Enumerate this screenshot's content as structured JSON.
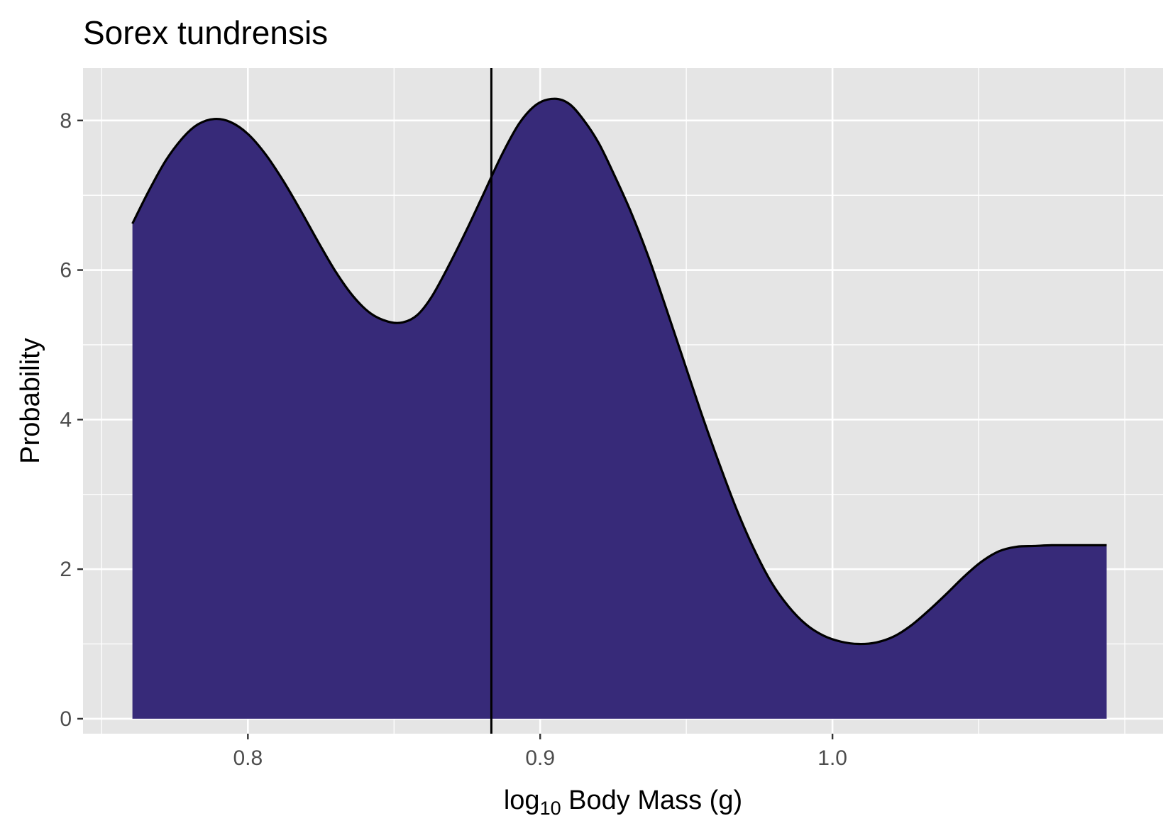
{
  "chart_data": {
    "type": "area",
    "title": "Sorex tundrensis",
    "xlabel": {
      "prefix": "log",
      "subscript": "10",
      "suffix": " Body Mass (g)"
    },
    "ylabel": "Probability",
    "xlim": [
      0.7436,
      1.1131
    ],
    "ylim": [
      -0.2,
      8.7
    ],
    "x_ticks": [
      {
        "value": 0.8,
        "label": "0.8"
      },
      {
        "value": 0.9,
        "label": "0.9"
      },
      {
        "value": 1.0,
        "label": "1.0"
      }
    ],
    "x_minor_ticks": [
      0.75,
      0.85,
      0.95,
      1.05,
      1.1
    ],
    "y_ticks": [
      {
        "value": 0,
        "label": "0"
      },
      {
        "value": 2,
        "label": "2"
      },
      {
        "value": 4,
        "label": "4"
      },
      {
        "value": 6,
        "label": "6"
      },
      {
        "value": 8,
        "label": "8"
      }
    ],
    "y_minor_ticks": [
      1,
      3,
      5,
      7
    ],
    "grid": true,
    "fill_color": "#372a79",
    "line_color": "#000000",
    "panel_color": "#e5e5e5",
    "grid_color": "#ffffff",
    "vline_x": 0.8833,
    "series": [
      {
        "x": [
          0.7605,
          0.766,
          0.772,
          0.778,
          0.783,
          0.7885,
          0.794,
          0.8,
          0.806,
          0.812,
          0.818,
          0.824,
          0.83,
          0.836,
          0.842,
          0.848,
          0.853,
          0.858,
          0.863,
          0.869,
          0.875,
          0.881,
          0.887,
          0.893,
          0.899,
          0.905,
          0.91,
          0.915,
          0.92,
          0.925,
          0.931,
          0.937,
          0.943,
          0.949,
          0.955,
          0.961,
          0.967,
          0.973,
          0.979,
          0.985,
          0.991,
          0.997,
          1.003,
          1.009,
          1.015,
          1.021,
          1.027,
          1.033,
          1.039,
          1.045,
          1.051,
          1.057,
          1.063,
          1.069,
          1.075,
          1.08,
          1.085,
          1.09,
          1.0938
        ],
        "y": [
          6.62,
          7.05,
          7.47,
          7.78,
          7.95,
          8.02,
          7.98,
          7.82,
          7.55,
          7.2,
          6.8,
          6.38,
          5.98,
          5.65,
          5.42,
          5.31,
          5.3,
          5.4,
          5.65,
          6.08,
          6.55,
          7.05,
          7.55,
          7.97,
          8.22,
          8.29,
          8.22,
          8.0,
          7.7,
          7.3,
          6.78,
          6.18,
          5.5,
          4.8,
          4.1,
          3.44,
          2.82,
          2.28,
          1.83,
          1.5,
          1.26,
          1.11,
          1.03,
          1.0,
          1.02,
          1.1,
          1.25,
          1.45,
          1.67,
          1.9,
          2.1,
          2.24,
          2.3,
          2.31,
          2.32,
          2.32,
          2.32,
          2.32,
          2.32
        ]
      }
    ]
  }
}
